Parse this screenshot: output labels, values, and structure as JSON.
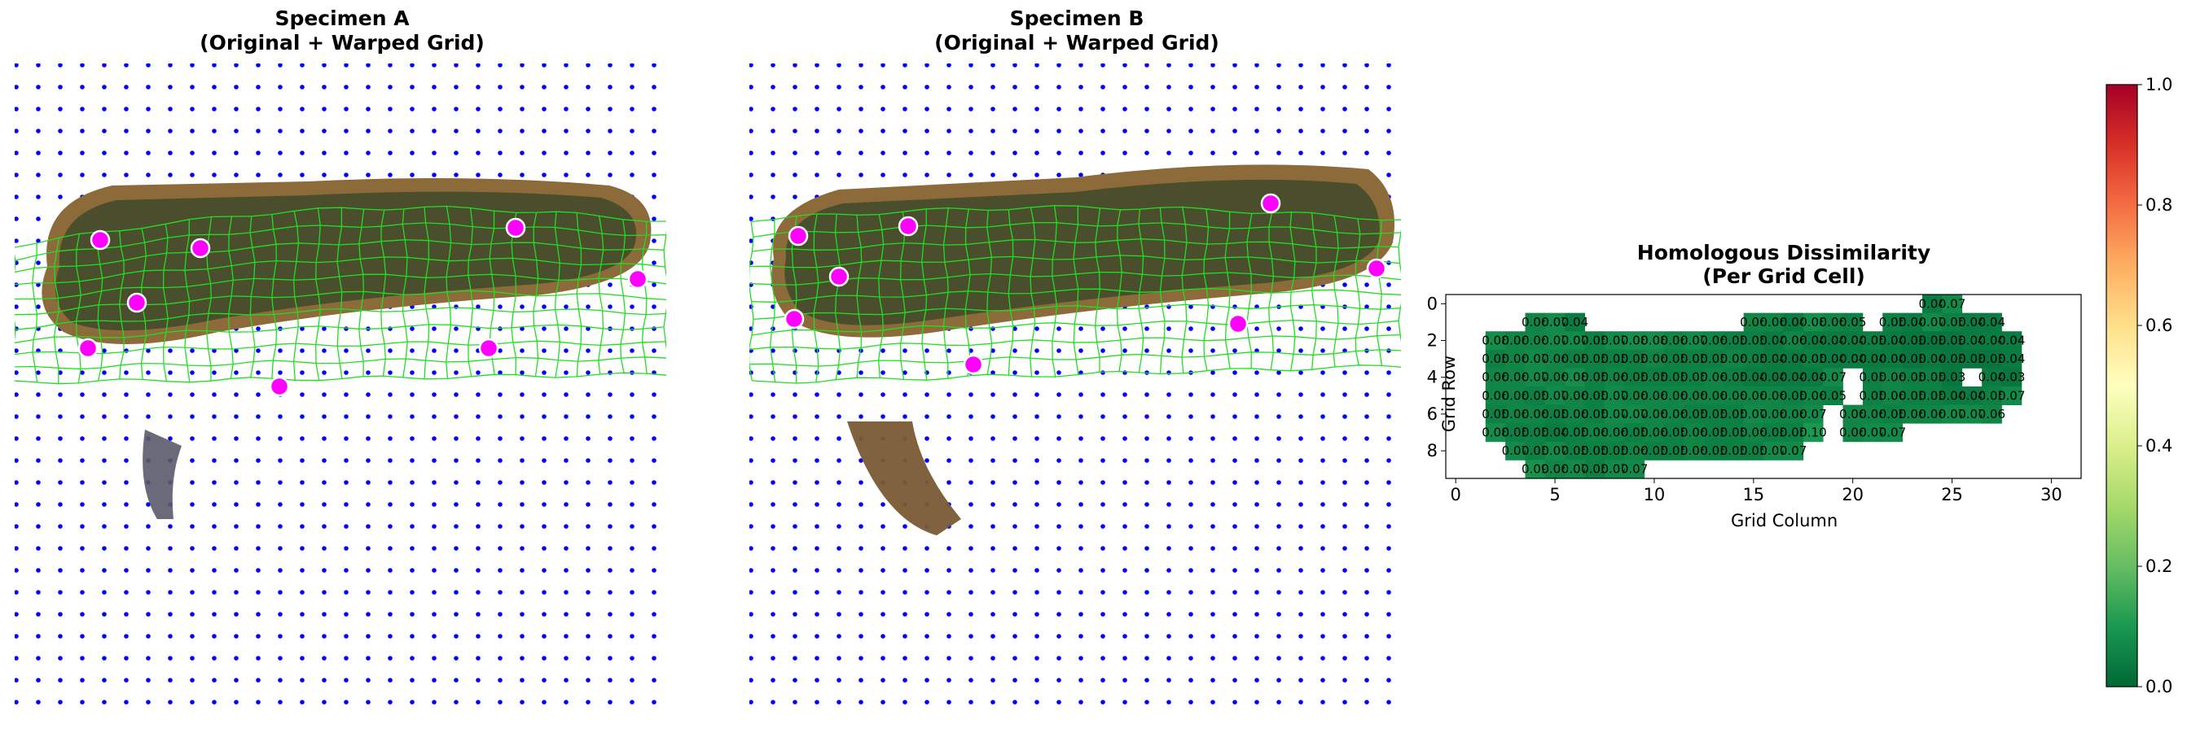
{
  "panels": {
    "a": {
      "title": "Specimen A",
      "subtitle": "(Original + Warped Grid)"
    },
    "b": {
      "title": "Specimen B",
      "subtitle": "(Original + Warped Grid)"
    }
  },
  "colors": {
    "grid_dots": "#0000ff",
    "warped_grid": "#22dd22",
    "landmark": "#ff00ff",
    "cell_labels": "#00e5ff",
    "specimen_body": "#4a4e2c",
    "specimen_rim": "#8c6a3a"
  },
  "icons": {
    "landmark": "magenta-landmark-dot",
    "grid": "blue-dot-grid"
  },
  "chart_data": {
    "type": "heatmap",
    "title": "Homologous Dissimilarity",
    "subtitle": "(Per Grid Cell)",
    "xlabel": "Grid Column",
    "ylabel": "Grid Row",
    "xlim": [
      -0.5,
      31.5
    ],
    "ylim": [
      9.5,
      -0.5
    ],
    "xticks": [
      0,
      5,
      10,
      15,
      20,
      25,
      30
    ],
    "yticks": [
      0,
      2,
      4,
      6,
      8
    ],
    "colormap": "RdYlGn_r",
    "colorbar": {
      "min": 0.0,
      "max": 1.0,
      "ticks": [
        "0.0",
        "0.2",
        "0.4",
        "0.6",
        "0.8",
        "1.0"
      ]
    },
    "cells": [
      {
        "row": 0,
        "cols": [
          24,
          25
        ],
        "values": [
          0.04,
          0.07
        ]
      },
      {
        "row": 1,
        "cols": [
          4,
          5,
          6,
          15,
          16,
          17,
          18,
          19,
          20,
          22,
          23,
          24,
          25,
          26,
          27
        ],
        "values": [
          0.06,
          0.07,
          0.04,
          0.06,
          0.06,
          0.04,
          0.08,
          0.06,
          0.05,
          0.05,
          0.04,
          0.07,
          0.05,
          0.04,
          0.04
        ]
      },
      {
        "row": 2,
        "cols": [
          2,
          3,
          4,
          5,
          6,
          7,
          8,
          9,
          10,
          11,
          12,
          13,
          14,
          15,
          16,
          17,
          18,
          19,
          20,
          21,
          22,
          23,
          24,
          25,
          26,
          27,
          28
        ],
        "values": [
          0.08,
          0.06,
          0.06,
          0.07,
          0.07,
          0.05,
          0.07,
          0.08,
          0.08,
          0.06,
          0.07,
          0.06,
          0.05,
          0.05,
          0.04,
          0.06,
          0.04,
          0.04,
          0.04,
          0.05,
          0.04,
          0.03,
          0.03,
          0.03,
          0.04,
          0.04,
          0.04
        ]
      },
      {
        "row": 3,
        "cols": [
          2,
          3,
          4,
          5,
          6,
          7,
          8,
          9,
          10,
          11,
          12,
          13,
          14,
          15,
          16,
          17,
          18,
          19,
          20,
          21,
          22,
          23,
          24,
          25,
          26,
          27,
          28
        ],
        "values": [
          0.05,
          0.06,
          0.07,
          0.06,
          0.05,
          0.05,
          0.05,
          0.05,
          0.06,
          0.05,
          0.05,
          0.05,
          0.06,
          0.05,
          0.04,
          0.04,
          0.05,
          0.04,
          0.04,
          0.04,
          0.04,
          0.03,
          0.04,
          0.03,
          0.03,
          0.03,
          0.04
        ]
      },
      {
        "row": 4,
        "cols": [
          2,
          3,
          4,
          5,
          6,
          7,
          8,
          9,
          10,
          11,
          12,
          13,
          14,
          15,
          16,
          17,
          18,
          19,
          21,
          22,
          23,
          24,
          25,
          27,
          28
        ],
        "values": [
          0.06,
          0.06,
          0.07,
          0.06,
          0.08,
          0.05,
          0.06,
          0.05,
          0.05,
          0.05,
          0.05,
          0.06,
          0.05,
          0.04,
          0.04,
          0.04,
          0.04,
          0.07,
          0.05,
          0.06,
          0.05,
          0.05,
          0.03,
          0.04,
          0.03
        ]
      },
      {
        "row": 5,
        "cols": [
          2,
          3,
          4,
          5,
          6,
          7,
          8,
          9,
          10,
          11,
          12,
          13,
          14,
          15,
          16,
          17,
          18,
          19,
          21,
          22,
          23,
          24,
          25,
          26,
          27,
          28
        ],
        "values": [
          0.06,
          0.06,
          0.05,
          0.07,
          0.06,
          0.05,
          0.07,
          0.06,
          0.06,
          0.06,
          0.06,
          0.06,
          0.06,
          0.06,
          0.06,
          0.05,
          0.06,
          0.05,
          0.05,
          0.06,
          0.05,
          0.05,
          0.04,
          0.04,
          0.05,
          0.07
        ]
      },
      {
        "row": 6,
        "cols": [
          2,
          3,
          4,
          5,
          6,
          7,
          8,
          9,
          10,
          11,
          12,
          13,
          14,
          15,
          16,
          17,
          18,
          20,
          21,
          22,
          23,
          24,
          25,
          26,
          27
        ],
        "values": [
          0.05,
          0.06,
          0.06,
          0.05,
          0.06,
          0.05,
          0.07,
          0.07,
          0.06,
          0.06,
          0.05,
          0.05,
          0.05,
          0.07,
          0.06,
          0.06,
          0.07,
          0.06,
          0.06,
          0.05,
          0.06,
          0.06,
          0.07,
          0.07,
          0.06
        ]
      },
      {
        "row": 7,
        "cols": [
          2,
          3,
          4,
          5,
          6,
          7,
          8,
          9,
          10,
          11,
          12,
          13,
          14,
          15,
          16,
          17,
          18,
          20,
          21,
          22
        ],
        "values": [
          0.08,
          0.05,
          0.05,
          0.04,
          0.05,
          0.06,
          0.06,
          0.05,
          0.06,
          0.05,
          0.06,
          0.05,
          0.05,
          0.06,
          0.05,
          0.05,
          0.1,
          0.06,
          0.07,
          0.07
        ]
      },
      {
        "row": 8,
        "cols": [
          3,
          4,
          5,
          6,
          7,
          8,
          9,
          10,
          11,
          12,
          13,
          14,
          15,
          16,
          17
        ],
        "values": [
          0.07,
          0.05,
          0.07,
          0.05,
          0.05,
          0.05,
          0.06,
          0.05,
          0.05,
          0.06,
          0.05,
          0.05,
          0.05,
          0.07,
          0.07
        ]
      },
      {
        "row": 9,
        "cols": [
          4,
          5,
          6,
          7,
          8,
          9
        ],
        "values": [
          0.09,
          0.06,
          0.07,
          0.05,
          0.07,
          0.07
        ]
      }
    ]
  }
}
